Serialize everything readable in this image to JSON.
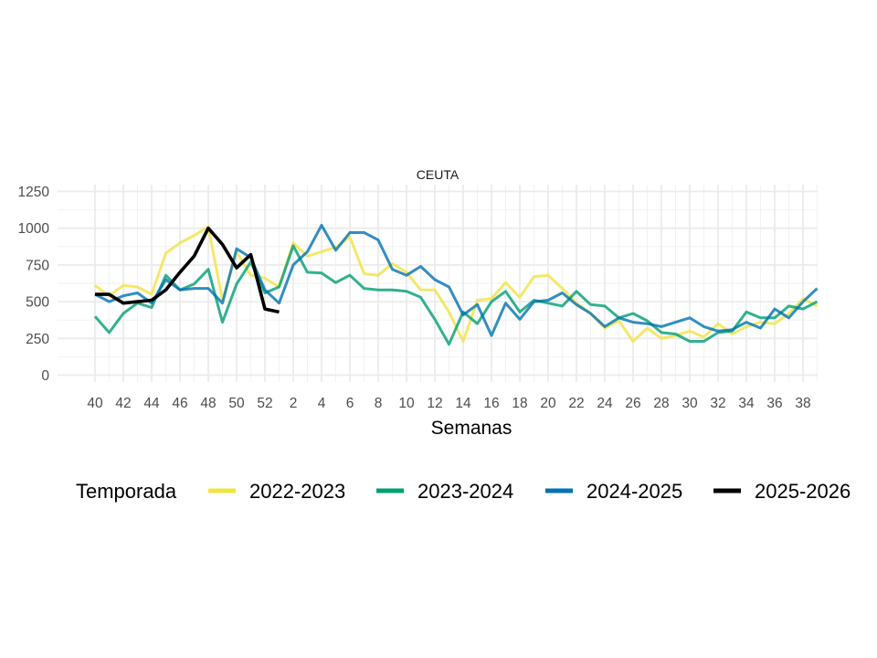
{
  "chart_data": {
    "type": "line",
    "title": "CEUTA",
    "xlabel": "Semanas",
    "ylabel": "",
    "ylim": [
      0,
      1250
    ],
    "yticks": [
      0,
      250,
      500,
      750,
      1000,
      1250
    ],
    "x": [
      "40",
      "41",
      "42",
      "43",
      "44",
      "45",
      "46",
      "47",
      "48",
      "49",
      "50",
      "51",
      "52",
      "1",
      "2",
      "3",
      "4",
      "5",
      "6",
      "7",
      "8",
      "9",
      "10",
      "11",
      "12",
      "13",
      "14",
      "15",
      "16",
      "17",
      "18",
      "19",
      "20",
      "21",
      "22",
      "23",
      "24",
      "25",
      "26",
      "27",
      "28",
      "29",
      "30",
      "31",
      "32",
      "33",
      "34",
      "35",
      "36",
      "37",
      "38",
      "39"
    ],
    "xticks": [
      "40",
      "42",
      "44",
      "46",
      "48",
      "50",
      "52",
      "2",
      "4",
      "6",
      "8",
      "10",
      "12",
      "14",
      "16",
      "18",
      "20",
      "22",
      "24",
      "26",
      "28",
      "30",
      "32",
      "34",
      "36",
      "38"
    ],
    "grid": true,
    "legend": {
      "title": "Temporada",
      "position": "bottom"
    },
    "series": [
      {
        "name": "2022-2023",
        "color": "#F0E442",
        "values": [
          610,
          540,
          610,
          600,
          550,
          830,
          900,
          950,
          1010,
          510,
          840,
          680,
          660,
          600,
          900,
          810,
          840,
          870,
          940,
          690,
          680,
          760,
          700,
          580,
          580,
          430,
          230,
          510,
          520,
          630,
          530,
          670,
          680,
          590,
          490,
          420,
          320,
          370,
          230,
          320,
          250,
          270,
          300,
          260,
          350,
          280,
          330,
          360,
          350,
          420,
          520,
          470
        ]
      },
      {
        "name": "2023-2024",
        "color": "#009E73",
        "values": [
          400,
          290,
          420,
          490,
          460,
          680,
          580,
          620,
          720,
          360,
          620,
          770,
          560,
          600,
          880,
          700,
          695,
          630,
          680,
          590,
          580,
          580,
          570,
          530,
          380,
          210,
          430,
          350,
          500,
          570,
          430,
          510,
          490,
          470,
          570,
          480,
          470,
          390,
          420,
          370,
          290,
          280,
          230,
          230,
          290,
          300,
          430,
          390,
          390,
          470,
          450,
          500
        ]
      },
      {
        "name": "2024-2025",
        "color": "#0072B2",
        "values": [
          550,
          500,
          540,
          560,
          490,
          650,
          580,
          590,
          590,
          490,
          860,
          800,
          580,
          490,
          750,
          840,
          1020,
          850,
          970,
          970,
          920,
          720,
          680,
          740,
          650,
          600,
          410,
          480,
          270,
          490,
          380,
          500,
          510,
          560,
          480,
          420,
          330,
          390,
          360,
          350,
          330,
          360,
          390,
          330,
          300,
          310,
          360,
          320,
          450,
          390,
          500,
          590
        ]
      },
      {
        "name": "2025-2026",
        "color": "#000000",
        "values": [
          550,
          550,
          490,
          500,
          510,
          580,
          700,
          810,
          1000,
          890,
          730,
          820,
          450,
          430,
          null,
          null,
          null,
          null,
          null,
          null,
          null,
          null,
          null,
          null,
          null,
          null,
          null,
          null,
          null,
          null,
          null,
          null,
          null,
          null,
          null,
          null,
          null,
          null,
          null,
          null,
          null,
          null,
          null,
          null,
          null,
          null,
          null,
          null,
          null,
          null,
          null,
          null
        ]
      }
    ]
  }
}
